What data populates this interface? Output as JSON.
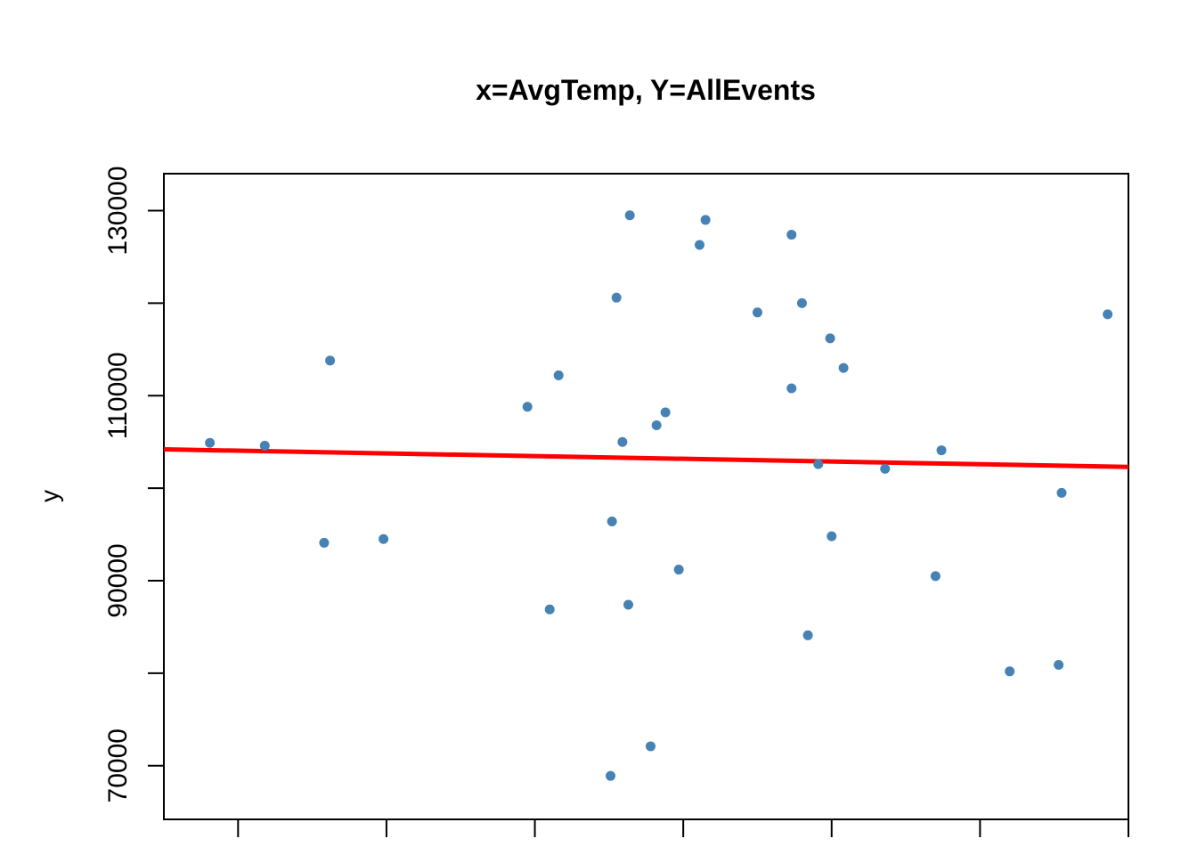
{
  "chart_data": {
    "type": "scatter",
    "title": "x=AvgTemp, Y=AllEvents",
    "xlabel": "",
    "ylabel": "y",
    "xlim": [
      -0.5,
      6.0
    ],
    "ylim": [
      64200,
      134000
    ],
    "yticks": [
      70000,
      90000,
      110000,
      130000
    ],
    "ytick_labels": [
      "70000",
      "",
      "90000",
      "",
      "110000",
      "",
      "130000"
    ],
    "yticks_all": [
      70000,
      80000,
      90000,
      100000,
      110000,
      120000,
      130000
    ],
    "xticks_all": [
      0,
      1,
      2,
      3,
      4,
      5,
      6
    ],
    "point_color": "#4682B4",
    "line_color": "#FF0000",
    "grid": false,
    "fit_line": {
      "x": [
        -0.5,
        6.0
      ],
      "y": [
        104200,
        102300
      ]
    },
    "points": [
      {
        "x": -0.19,
        "y": 104900
      },
      {
        "x": 0.18,
        "y": 104600
      },
      {
        "x": 0.58,
        "y": 94100
      },
      {
        "x": 0.62,
        "y": 113800
      },
      {
        "x": 0.98,
        "y": 94500
      },
      {
        "x": 1.95,
        "y": 108800
      },
      {
        "x": 2.1,
        "y": 86900
      },
      {
        "x": 2.16,
        "y": 112200
      },
      {
        "x": 2.51,
        "y": 68900
      },
      {
        "x": 2.52,
        "y": 96400
      },
      {
        "x": 2.55,
        "y": 120600
      },
      {
        "x": 2.59,
        "y": 105000
      },
      {
        "x": 2.63,
        "y": 87400
      },
      {
        "x": 2.64,
        "y": 129500
      },
      {
        "x": 2.78,
        "y": 72100
      },
      {
        "x": 2.82,
        "y": 106800
      },
      {
        "x": 2.88,
        "y": 108200
      },
      {
        "x": 2.97,
        "y": 91200
      },
      {
        "x": 3.11,
        "y": 126300
      },
      {
        "x": 3.15,
        "y": 129000
      },
      {
        "x": 3.5,
        "y": 119000
      },
      {
        "x": 3.73,
        "y": 127400
      },
      {
        "x": 3.73,
        "y": 110800
      },
      {
        "x": 3.8,
        "y": 120000
      },
      {
        "x": 3.84,
        "y": 84100
      },
      {
        "x": 3.91,
        "y": 102600
      },
      {
        "x": 3.99,
        "y": 116200
      },
      {
        "x": 4.0,
        "y": 94800
      },
      {
        "x": 4.08,
        "y": 113000
      },
      {
        "x": 4.36,
        "y": 102100
      },
      {
        "x": 4.7,
        "y": 90500
      },
      {
        "x": 4.74,
        "y": 104100
      },
      {
        "x": 5.2,
        "y": 80200
      },
      {
        "x": 5.53,
        "y": 80900
      },
      {
        "x": 5.55,
        "y": 99500
      },
      {
        "x": 5.86,
        "y": 118800
      }
    ]
  }
}
